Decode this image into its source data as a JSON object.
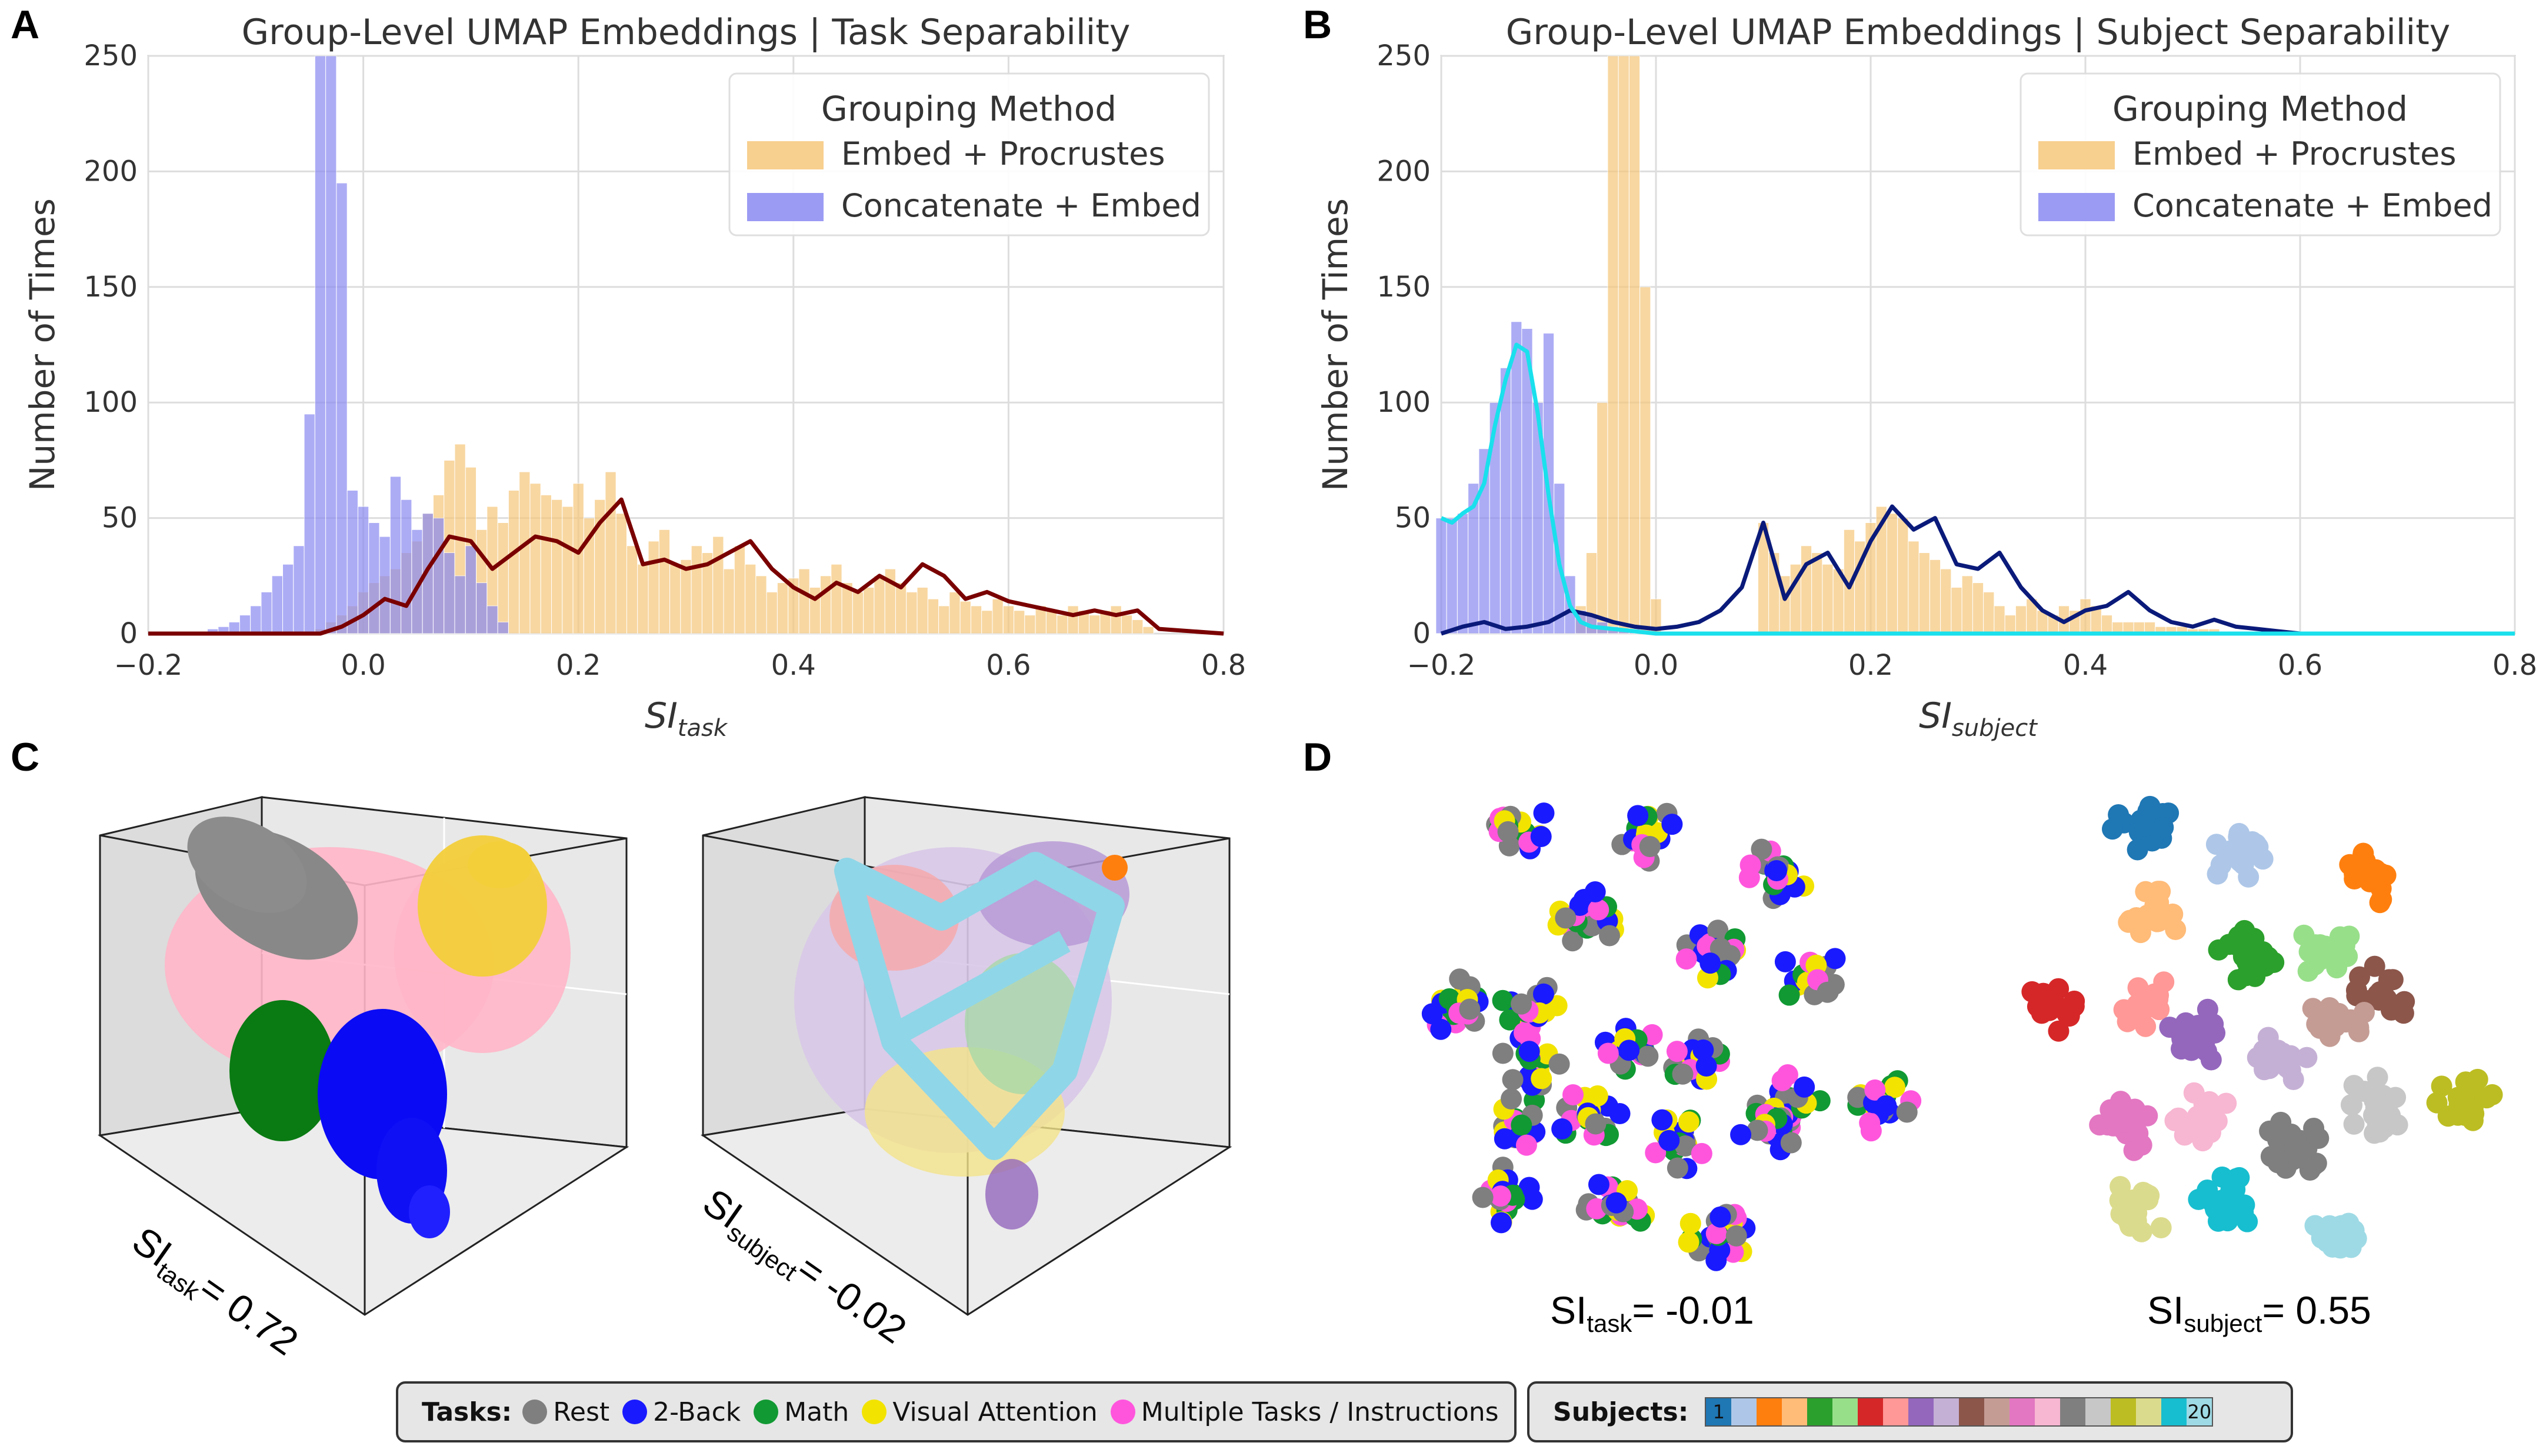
{
  "panels": {
    "a": "A",
    "b": "B",
    "c": "C",
    "d": "D"
  },
  "chart_data": [
    {
      "type": "bar",
      "panel": "A",
      "title": "Group-Level UMAP Embeddings | Task Separability",
      "xlabel": "SI",
      "xlabel_sub": "task",
      "ylabel": "Number of Times",
      "xlim": [
        -0.2,
        0.8
      ],
      "ylim": [
        0,
        250
      ],
      "xticks": [
        "−0.2",
        "0.0",
        "0.2",
        "0.4",
        "0.6",
        "0.8"
      ],
      "yticks": [
        "0",
        "50",
        "100",
        "150",
        "200",
        "250"
      ],
      "legend": {
        "title": "Grouping Method",
        "position": "top-right"
      },
      "series": [
        {
          "name": "Embed + Procrustes",
          "color": "#f6c77a",
          "x": [
            -0.04,
            -0.03,
            -0.02,
            -0.01,
            0.0,
            0.01,
            0.02,
            0.03,
            0.04,
            0.05,
            0.06,
            0.07,
            0.08,
            0.09,
            0.1,
            0.11,
            0.12,
            0.13,
            0.14,
            0.15,
            0.16,
            0.17,
            0.18,
            0.19,
            0.2,
            0.21,
            0.22,
            0.23,
            0.24,
            0.25,
            0.26,
            0.27,
            0.28,
            0.29,
            0.3,
            0.31,
            0.32,
            0.33,
            0.34,
            0.35,
            0.36,
            0.37,
            0.38,
            0.39,
            0.4,
            0.41,
            0.42,
            0.43,
            0.44,
            0.45,
            0.46,
            0.47,
            0.48,
            0.49,
            0.5,
            0.51,
            0.52,
            0.53,
            0.54,
            0.55,
            0.56,
            0.57,
            0.58,
            0.59,
            0.6,
            0.61,
            0.62,
            0.63,
            0.64,
            0.65,
            0.66,
            0.67,
            0.68,
            0.69,
            0.7,
            0.71,
            0.72,
            0.73
          ],
          "values": [
            2,
            5,
            8,
            12,
            18,
            22,
            25,
            28,
            35,
            40,
            52,
            60,
            75,
            82,
            72,
            45,
            55,
            48,
            62,
            70,
            65,
            60,
            58,
            55,
            65,
            50,
            58,
            70,
            52,
            38,
            30,
            40,
            45,
            30,
            32,
            38,
            35,
            42,
            28,
            38,
            30,
            25,
            18,
            22,
            24,
            28,
            20,
            25,
            30,
            22,
            18,
            20,
            25,
            28,
            22,
            18,
            20,
            15,
            12,
            18,
            14,
            12,
            10,
            15,
            12,
            10,
            8,
            12,
            10,
            8,
            12,
            10,
            8,
            10,
            12,
            8,
            6,
            3
          ]
        },
        {
          "name": "Concatenate + Embed",
          "color": "#8a8af2",
          "x": [
            -0.15,
            -0.14,
            -0.13,
            -0.12,
            -0.11,
            -0.1,
            -0.09,
            -0.08,
            -0.07,
            -0.06,
            -0.05,
            -0.04,
            -0.03,
            -0.02,
            -0.01,
            0.0,
            0.01,
            0.02,
            0.03,
            0.04,
            0.05,
            0.06,
            0.07,
            0.08,
            0.09,
            0.1,
            0.11,
            0.12,
            0.13
          ],
          "values": [
            1,
            2,
            3,
            5,
            8,
            12,
            18,
            25,
            30,
            38,
            95,
            260,
            250,
            195,
            62,
            55,
            48,
            42,
            68,
            58,
            45,
            52,
            50,
            35,
            25,
            38,
            22,
            12,
            5
          ]
        },
        {
          "name": "Embed + Procrustes (KDE)",
          "color": "#7a0000",
          "kind": "line",
          "x": [
            -0.2,
            -0.04,
            -0.02,
            0.0,
            0.02,
            0.04,
            0.06,
            0.08,
            0.1,
            0.12,
            0.14,
            0.16,
            0.18,
            0.2,
            0.22,
            0.24,
            0.26,
            0.28,
            0.3,
            0.32,
            0.34,
            0.36,
            0.38,
            0.4,
            0.42,
            0.44,
            0.46,
            0.48,
            0.5,
            0.52,
            0.54,
            0.56,
            0.58,
            0.6,
            0.62,
            0.64,
            0.66,
            0.68,
            0.7,
            0.72,
            0.74,
            0.8
          ],
          "values": [
            0,
            0,
            3,
            8,
            15,
            12,
            28,
            42,
            40,
            28,
            35,
            42,
            40,
            35,
            48,
            58,
            30,
            32,
            28,
            30,
            35,
            40,
            28,
            20,
            15,
            22,
            18,
            25,
            20,
            30,
            25,
            15,
            18,
            14,
            12,
            10,
            8,
            10,
            8,
            10,
            2,
            0
          ]
        }
      ]
    },
    {
      "type": "bar",
      "panel": "B",
      "title": "Group-Level UMAP Embeddings | Subject Separability",
      "xlabel": "SI",
      "xlabel_sub": "subject",
      "ylabel": "Number of Times",
      "xlim": [
        -0.2,
        0.8
      ],
      "ylim": [
        0,
        250
      ],
      "xticks": [
        "−0.2",
        "0.0",
        "0.2",
        "0.4",
        "0.6",
        "0.8"
      ],
      "yticks": [
        "0",
        "50",
        "100",
        "150",
        "200",
        "250"
      ],
      "legend": {
        "title": "Grouping Method",
        "position": "top-right"
      },
      "series": [
        {
          "name": "Embed + Procrustes",
          "color": "#f6c77a",
          "x": [
            -0.2,
            -0.19,
            -0.18,
            -0.17,
            -0.16,
            -0.15,
            -0.14,
            -0.13,
            -0.12,
            -0.11,
            -0.1,
            -0.09,
            -0.08,
            -0.07,
            -0.06,
            -0.05,
            -0.04,
            -0.03,
            -0.02,
            -0.01,
            0.0,
            0.1,
            0.11,
            0.12,
            0.13,
            0.14,
            0.15,
            0.16,
            0.17,
            0.18,
            0.19,
            0.2,
            0.21,
            0.22,
            0.23,
            0.24,
            0.25,
            0.26,
            0.27,
            0.28,
            0.29,
            0.3,
            0.31,
            0.32,
            0.33,
            0.34,
            0.35,
            0.36,
            0.37,
            0.38,
            0.39,
            0.4,
            0.41,
            0.42,
            0.43,
            0.44,
            0.45,
            0.46,
            0.47,
            0.48,
            0.49,
            0.5,
            0.51,
            0.52,
            0.53,
            0.54,
            0.55
          ],
          "values": [
            0,
            0,
            0,
            0,
            0,
            0,
            0,
            0,
            0,
            0,
            0,
            0,
            0,
            12,
            35,
            100,
            260,
            255,
            260,
            150,
            15,
            48,
            35,
            25,
            30,
            38,
            35,
            30,
            28,
            45,
            40,
            48,
            55,
            52,
            50,
            40,
            35,
            32,
            28,
            20,
            25,
            22,
            18,
            12,
            8,
            12,
            15,
            10,
            8,
            12,
            10,
            15,
            12,
            8,
            5,
            5,
            5,
            5,
            3,
            3,
            3,
            2,
            2,
            2,
            1,
            1,
            1
          ]
        },
        {
          "name": "Concatenate + Embed",
          "color": "#8a8af2",
          "x": [
            -0.2,
            -0.19,
            -0.18,
            -0.17,
            -0.16,
            -0.15,
            -0.14,
            -0.13,
            -0.12,
            -0.11,
            -0.1,
            -0.09,
            -0.08,
            -0.07,
            -0.06,
            -0.05,
            -0.04,
            -0.03,
            -0.02,
            -0.01
          ],
          "values": [
            50,
            50,
            52,
            65,
            80,
            100,
            115,
            135,
            132,
            100,
            130,
            65,
            25,
            10,
            8,
            5,
            3,
            2,
            2,
            1
          ]
        },
        {
          "name": "Embed + Procrustes (KDE)",
          "color": "#0a1a7a",
          "kind": "line",
          "x": [
            -0.2,
            -0.18,
            -0.16,
            -0.14,
            -0.12,
            -0.1,
            -0.08,
            -0.06,
            -0.04,
            -0.02,
            0.0,
            0.02,
            0.04,
            0.06,
            0.08,
            0.1,
            0.12,
            0.14,
            0.16,
            0.18,
            0.2,
            0.22,
            0.24,
            0.26,
            0.28,
            0.3,
            0.32,
            0.34,
            0.36,
            0.38,
            0.4,
            0.42,
            0.44,
            0.46,
            0.48,
            0.5,
            0.52,
            0.54,
            0.56,
            0.58,
            0.6,
            0.8
          ],
          "values": [
            0,
            3,
            5,
            2,
            3,
            5,
            10,
            8,
            5,
            3,
            2,
            3,
            5,
            10,
            20,
            48,
            15,
            30,
            35,
            20,
            40,
            55,
            45,
            50,
            30,
            28,
            35,
            20,
            10,
            5,
            10,
            12,
            18,
            10,
            5,
            3,
            6,
            3,
            2,
            1,
            0,
            0
          ]
        },
        {
          "name": "Concatenate + Embed (KDE)",
          "color": "#19e0ec",
          "kind": "line",
          "x": [
            -0.2,
            -0.19,
            -0.18,
            -0.17,
            -0.16,
            -0.15,
            -0.14,
            -0.13,
            -0.12,
            -0.11,
            -0.1,
            -0.09,
            -0.08,
            -0.07,
            -0.06,
            -0.04,
            -0.02,
            0.0,
            0.1,
            0.8
          ],
          "values": [
            50,
            48,
            52,
            55,
            65,
            90,
            110,
            125,
            122,
            95,
            60,
            30,
            12,
            5,
            3,
            2,
            1,
            0,
            0,
            0
          ]
        }
      ]
    }
  ],
  "panel_c": {
    "left_label_pre": "SI",
    "left_label_sub": "task",
    "left_label_post": "= 0.72",
    "right_label_pre": "SI",
    "right_label_sub": "subject",
    "right_label_post": "= -0.02"
  },
  "panel_d": {
    "left_label_pre": "SI",
    "left_label_sub": "task",
    "left_label_post": "= -0.01",
    "right_label_pre": "SI",
    "right_label_sub": "subject",
    "right_label_post": "= 0.55"
  },
  "tasks_legend": {
    "title": "Tasks:",
    "items": [
      {
        "label": "Rest",
        "color": "#7f7f7f"
      },
      {
        "label": "2-Back",
        "color": "#1a1aff"
      },
      {
        "label": "Math",
        "color": "#119933"
      },
      {
        "label": "Visual Attention",
        "color": "#f2e300"
      },
      {
        "label": "Multiple Tasks / Instructions",
        "color": "#ff55dd"
      }
    ]
  },
  "subjects_legend": {
    "title": "Subjects:",
    "first": "1",
    "last": "20",
    "colors": [
      "#1f77b4",
      "#aec7e8",
      "#ff7f0e",
      "#ffbb78",
      "#2ca02c",
      "#98df8a",
      "#d62728",
      "#ff9896",
      "#9467bd",
      "#c5b0d5",
      "#8c564b",
      "#c49c94",
      "#e377c2",
      "#f7b6d2",
      "#7f7f7f",
      "#c7c7c7",
      "#bcbd22",
      "#dbdb8d",
      "#17becf",
      "#9edae5"
    ]
  }
}
